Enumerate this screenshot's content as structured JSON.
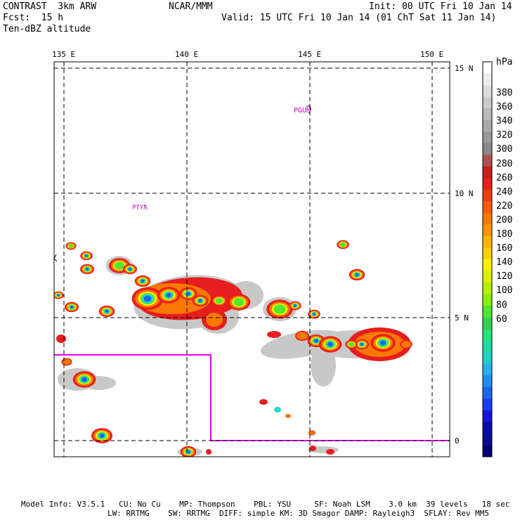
{
  "header": {
    "model": "CONTRAST  3km ARW",
    "org": "NCAR/MMM",
    "init": "Init: 00 UTC Fri 10 Jan 14",
    "fcst": "Fcst:  15 h",
    "valid": "Valid: 15 UTC Fri 10 Jan 14 (01 ChT Sat 11 Jan 14)",
    "field": "Ten-dBZ altitude"
  },
  "axes": {
    "lon_labels": [
      "135 E",
      "140 E",
      "145 E",
      "150 E"
    ],
    "lat_labels": [
      "15 N",
      "10 N",
      "5 N",
      "0"
    ]
  },
  "stations": {
    "guam": "PGUM",
    "palau": "PTYA"
  },
  "colorbar": {
    "unit": "hPa",
    "labels": [
      "380",
      "360",
      "340",
      "320",
      "300",
      "280",
      "260",
      "240",
      "220",
      "200",
      "180",
      "160",
      "140",
      "120",
      "100",
      "80",
      "60"
    ],
    "colors": [
      "#ffffff",
      "#eeeeee",
      "#dddddd",
      "#cccccc",
      "#bbbbbb",
      "#aaaaaa",
      "#999999",
      "#888888",
      "#b05050",
      "#c81e1e",
      "#e61e1e",
      "#f03c14",
      "#fa5a0a",
      "#fa7800",
      "#fa9600",
      "#fab400",
      "#fad200",
      "#faf000",
      "#dcf000",
      "#b4f000",
      "#8cf000",
      "#50e632",
      "#32d250",
      "#1ee678",
      "#1edca0",
      "#1ed2c8",
      "#1eb4e6",
      "#1e8cf0",
      "#1e64f0",
      "#1e3cf0",
      "#1414dc",
      "#0a0ab4",
      "#0a0a96",
      "#000078"
    ]
  },
  "footer": {
    "line1": "Model Info: V3.5.1   CU: No Cu    MP: Thompson    PBL: YSU     SF: Noah LSM    3.0 km  39 levels   18 sec",
    "line2": "LW: RRTMG    SW: RRTMG  DIFF: simple KM: 3D Smagor DAMP: Rayleigh3  SFLAY: Rev MM5"
  }
}
